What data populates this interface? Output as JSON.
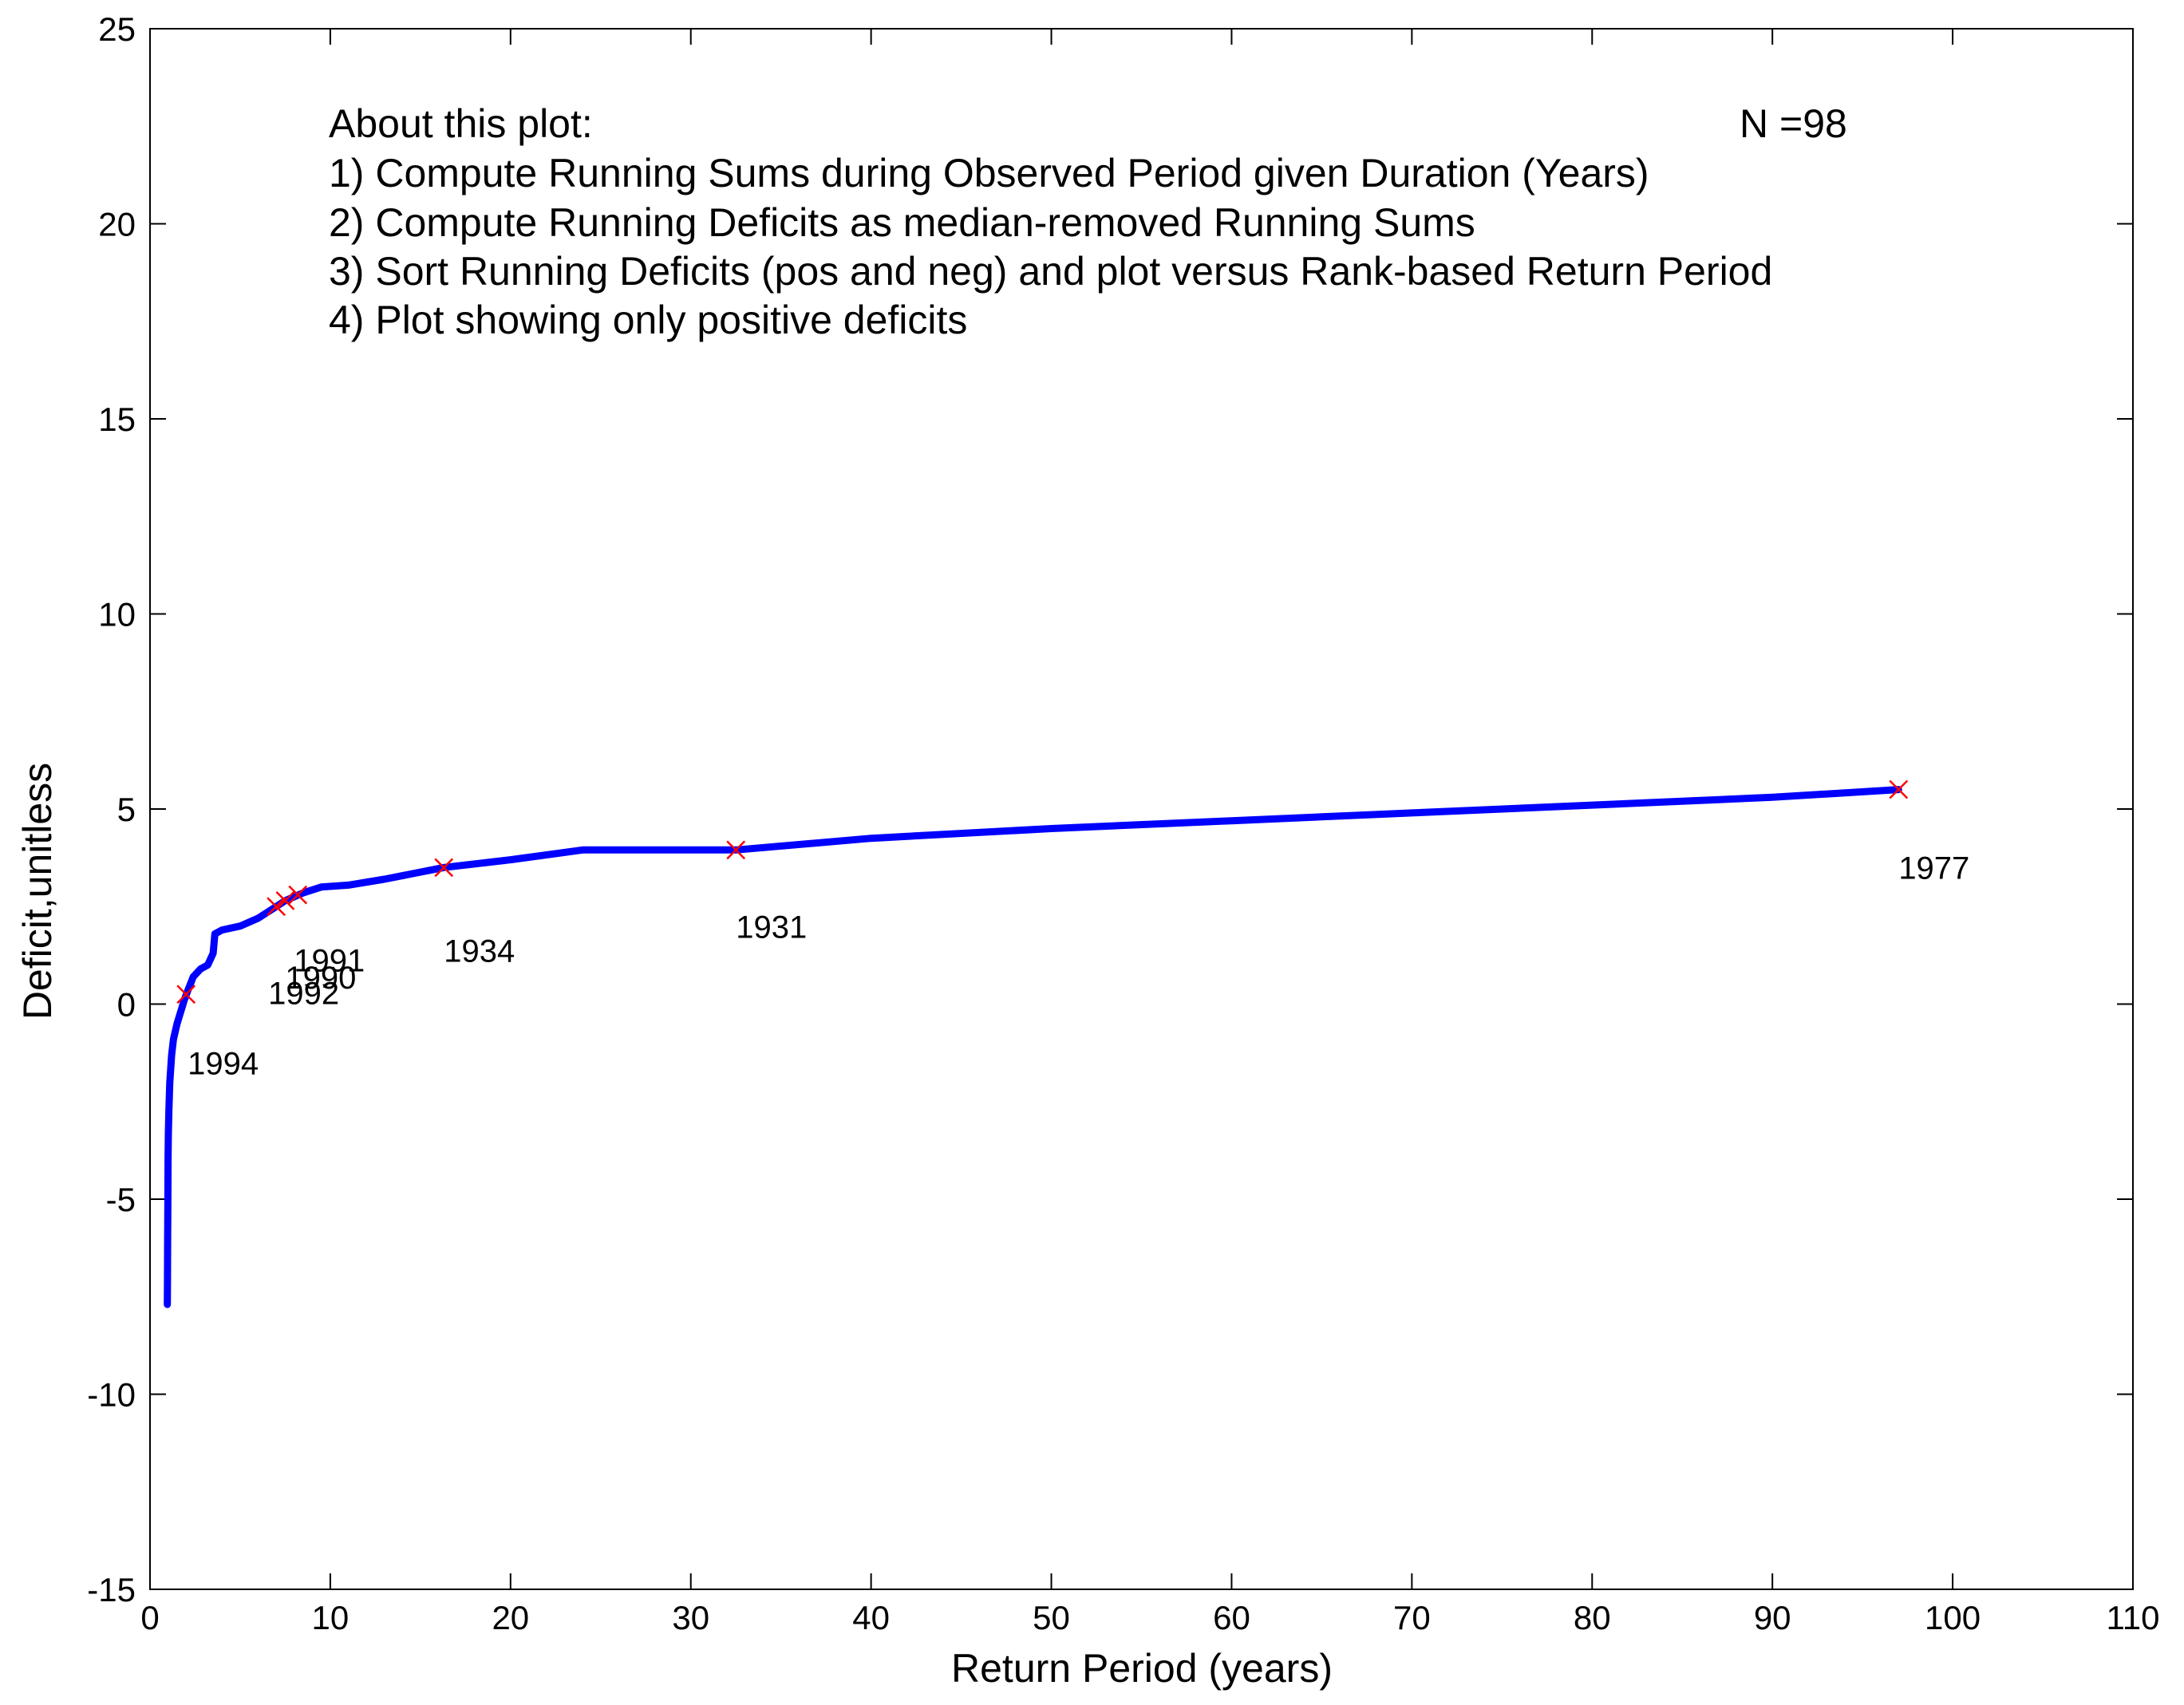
{
  "chart_data": {
    "type": "line",
    "title": "",
    "xlabel": "Return Period (years)",
    "ylabel": "Deficit,unitless",
    "xlim": [
      0,
      110
    ],
    "ylim": [
      -15,
      25
    ],
    "xticks": [
      0,
      10,
      20,
      30,
      40,
      50,
      60,
      70,
      80,
      90,
      100,
      110
    ],
    "yticks": [
      -15,
      -10,
      -5,
      0,
      5,
      10,
      15,
      20,
      25
    ],
    "grid": false,
    "colors": {
      "line": "#0000ff",
      "marker": "#ff0000"
    },
    "series": [
      {
        "x": [
          0.96,
          0.97,
          0.98,
          0.99,
          1.0,
          1.02,
          1.05,
          1.1,
          1.2,
          1.3,
          1.5,
          1.7,
          1.9,
          2.1,
          2.4,
          2.8,
          3.2,
          3.5,
          3.6,
          4.0,
          5.0,
          6.0,
          6.5,
          7.0,
          7.5,
          8.0,
          8.5,
          9.5,
          11,
          13,
          16.3,
          20,
          24,
          32.5,
          40,
          50,
          60,
          70,
          80,
          90,
          97
        ],
        "y": [
          -7.7,
          -7.0,
          -6.0,
          -5.0,
          -4.0,
          -3.3,
          -2.7,
          -2.0,
          -1.3,
          -0.9,
          -0.5,
          -0.2,
          0.1,
          0.35,
          0.7,
          0.9,
          1.0,
          1.3,
          1.8,
          1.9,
          2.0,
          2.2,
          2.35,
          2.5,
          2.65,
          2.75,
          2.85,
          3.0,
          3.05,
          3.2,
          3.5,
          3.7,
          3.95,
          3.95,
          4.25,
          4.5,
          4.7,
          4.9,
          5.1,
          5.3,
          5.5
        ]
      }
    ],
    "markers": [
      {
        "x": 2.0,
        "y": 0.25,
        "year": "1994"
      },
      {
        "x": 7.0,
        "y": 2.5,
        "year": "1992"
      },
      {
        "x": 7.5,
        "y": 2.65,
        "year": "1990"
      },
      {
        "x": 8.2,
        "y": 2.8,
        "year": "1991"
      },
      {
        "x": 16.3,
        "y": 3.5,
        "year": "1934"
      },
      {
        "x": 32.5,
        "y": 3.95,
        "year": "1931"
      },
      {
        "x": 97.0,
        "y": 5.5,
        "year": "1977"
      }
    ],
    "annotations": {
      "heading": "About this plot:",
      "n_label": "N =98",
      "lines": [
        "1) Compute Running Sums during Observed Period given Duration (Years)",
        "2) Compute Running Deficits as median-removed Running Sums",
        "3) Sort Running Deficits (pos and neg) and plot versus Rank-based Return Period",
        "4) Plot showing only positive deficits"
      ]
    }
  }
}
